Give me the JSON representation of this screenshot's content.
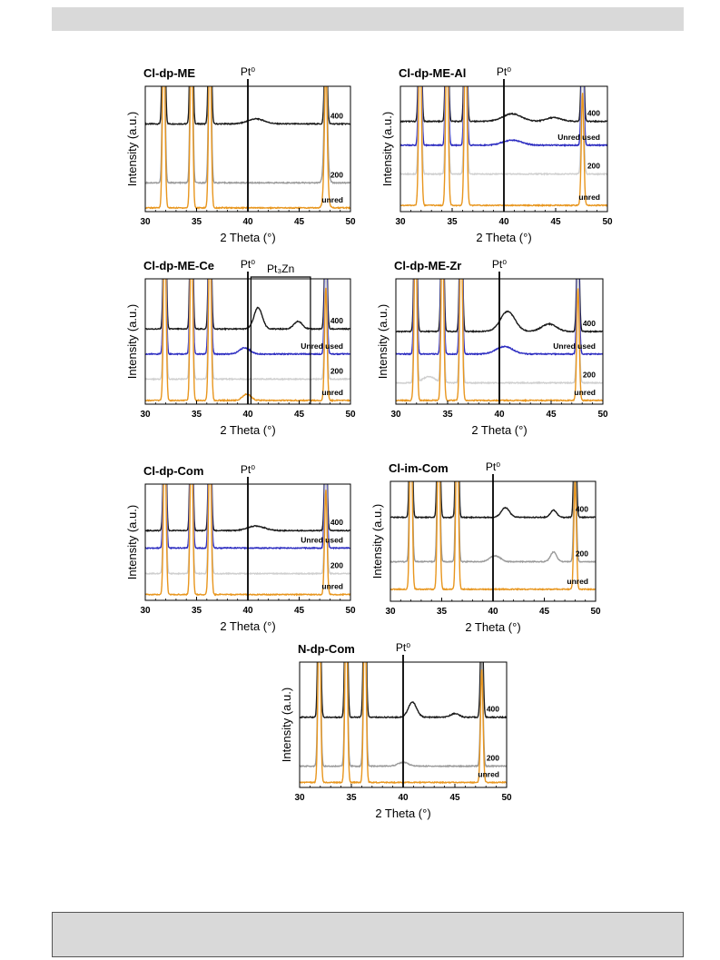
{
  "colors": {
    "s400": "#1a1a1a",
    "unred_used": "#2b2bc0",
    "s200": "#9a9a9a",
    "s200_light": "#cfcfcf",
    "unred": "#e8961e",
    "vline": "#000000"
  },
  "common": {
    "xlabel": "2 Theta (°)",
    "ylabel": "Intensity (a.u.)",
    "xlim": [
      30,
      50
    ],
    "xticks": [
      "30",
      "35",
      "40",
      "45",
      "50"
    ]
  },
  "chart_data": [
    {
      "type": "line",
      "title": "Cl-dp-ME",
      "marker": "Pt⁰",
      "marker_x": 40,
      "peaks_main": [
        31.8,
        34.5,
        36.3,
        47.6
      ],
      "series": [
        {
          "name": "400",
          "offset": 0.7,
          "extra_peaks": [
            {
              "x": 40.8,
              "h": 0.04,
              "w": 0.8
            }
          ]
        },
        {
          "name": "200",
          "offset": 0.23,
          "extra_peaks": [
            {
              "x": 47.6,
              "h": 0.3,
              "w": 0.2
            }
          ]
        },
        {
          "name": "unred",
          "offset": 0.03,
          "extra_peaks": [
            {
              "x": 47.6,
              "h": 0.25,
              "w": 0.2
            }
          ]
        }
      ]
    },
    {
      "type": "line",
      "title": "Cl-dp-ME-Al",
      "marker": "Pt⁰",
      "marker_x": 40,
      "peaks_main": [
        31.9,
        34.5,
        36.3,
        47.6
      ],
      "series": [
        {
          "name": "400",
          "offset": 0.72,
          "extra_peaks": [
            {
              "x": 40.8,
              "h": 0.06,
              "w": 0.9
            },
            {
              "x": 44.8,
              "h": 0.03,
              "w": 0.7
            }
          ]
        },
        {
          "name": "Unred used",
          "offset": 0.53,
          "extra_peaks": [
            {
              "x": 40.8,
              "h": 0.04,
              "w": 0.9
            }
          ]
        },
        {
          "name": "200",
          "offset": 0.3,
          "extra_peaks": []
        },
        {
          "name": "unred",
          "offset": 0.05,
          "extra_peaks": []
        }
      ]
    },
    {
      "type": "line",
      "title": "Cl-dp-ME-Ce",
      "marker": "Pt⁰",
      "marker_x": 40,
      "box_label": "Pt₃Zn",
      "box_x": [
        40.3,
        46.1
      ],
      "peaks_main": [
        31.9,
        34.5,
        36.3,
        47.6
      ],
      "series": [
        {
          "name": "400",
          "offset": 0.6,
          "extra_peaks": [
            {
              "x": 41.0,
              "h": 0.17,
              "w": 0.4
            },
            {
              "x": 44.9,
              "h": 0.06,
              "w": 0.4
            }
          ]
        },
        {
          "name": "Unred used",
          "offset": 0.4,
          "extra_peaks": [
            {
              "x": 39.7,
              "h": 0.05,
              "w": 0.5
            }
          ]
        },
        {
          "name": "200",
          "offset": 0.2,
          "extra_peaks": []
        },
        {
          "name": "unred",
          "offset": 0.03,
          "extra_peaks": [
            {
              "x": 39.9,
              "h": 0.05,
              "w": 0.4
            }
          ]
        }
      ]
    },
    {
      "type": "line",
      "title": "Cl-dp-ME-Zr",
      "marker": "Pt⁰",
      "marker_x": 40,
      "peaks_main": [
        31.9,
        34.5,
        36.3,
        47.6
      ],
      "series": [
        {
          "name": "400",
          "offset": 0.58,
          "extra_peaks": [
            {
              "x": 40.8,
              "h": 0.16,
              "w": 0.7
            },
            {
              "x": 44.8,
              "h": 0.06,
              "w": 0.7
            }
          ]
        },
        {
          "name": "Unred used",
          "offset": 0.4,
          "extra_peaks": [
            {
              "x": 40.5,
              "h": 0.06,
              "w": 0.8
            }
          ]
        },
        {
          "name": "200",
          "offset": 0.17,
          "extra_peaks": [
            {
              "x": 33.2,
              "h": 0.05,
              "w": 0.6
            }
          ]
        },
        {
          "name": "unred",
          "offset": 0.03,
          "extra_peaks": []
        }
      ]
    },
    {
      "type": "line",
      "title": "Cl-dp-Com",
      "marker": "Pt⁰",
      "marker_x": 40,
      "peaks_main": [
        31.9,
        34.5,
        36.3,
        47.6
      ],
      "series": [
        {
          "name": "400",
          "offset": 0.6,
          "extra_peaks": [
            {
              "x": 40.8,
              "h": 0.04,
              "w": 0.8
            }
          ]
        },
        {
          "name": "Unred used",
          "offset": 0.45,
          "extra_peaks": []
        },
        {
          "name": "200",
          "offset": 0.23,
          "extra_peaks": []
        },
        {
          "name": "unred",
          "offset": 0.05,
          "extra_peaks": []
        }
      ]
    },
    {
      "type": "line",
      "title": "Cl-im-Com",
      "marker": "Pt⁰",
      "marker_x": 40,
      "peaks_main": [
        32.0,
        34.7,
        36.5,
        48.0
      ],
      "series": [
        {
          "name": "400",
          "offset": 0.7,
          "extra_peaks": [
            {
              "x": 41.2,
              "h": 0.08,
              "w": 0.4
            },
            {
              "x": 45.9,
              "h": 0.06,
              "w": 0.3
            }
          ]
        },
        {
          "name": "200",
          "offset": 0.33,
          "extra_peaks": [
            {
              "x": 40.2,
              "h": 0.05,
              "w": 0.5
            },
            {
              "x": 45.9,
              "h": 0.08,
              "w": 0.3
            }
          ]
        },
        {
          "name": "unred",
          "offset": 0.1,
          "extra_peaks": []
        }
      ]
    },
    {
      "type": "line",
      "title": "N-dp-Com",
      "marker": "Pt⁰",
      "marker_x": 40,
      "peaks_main": [
        31.9,
        34.5,
        36.3,
        47.6
      ],
      "series": [
        {
          "name": "400",
          "offset": 0.56,
          "extra_peaks": [
            {
              "x": 40.9,
              "h": 0.12,
              "w": 0.4
            },
            {
              "x": 45.0,
              "h": 0.03,
              "w": 0.4
            }
          ]
        },
        {
          "name": "200",
          "offset": 0.17,
          "extra_peaks": [
            {
              "x": 40.0,
              "h": 0.03,
              "w": 0.5
            }
          ]
        },
        {
          "name": "unred",
          "offset": 0.04,
          "extra_peaks": []
        }
      ]
    }
  ]
}
